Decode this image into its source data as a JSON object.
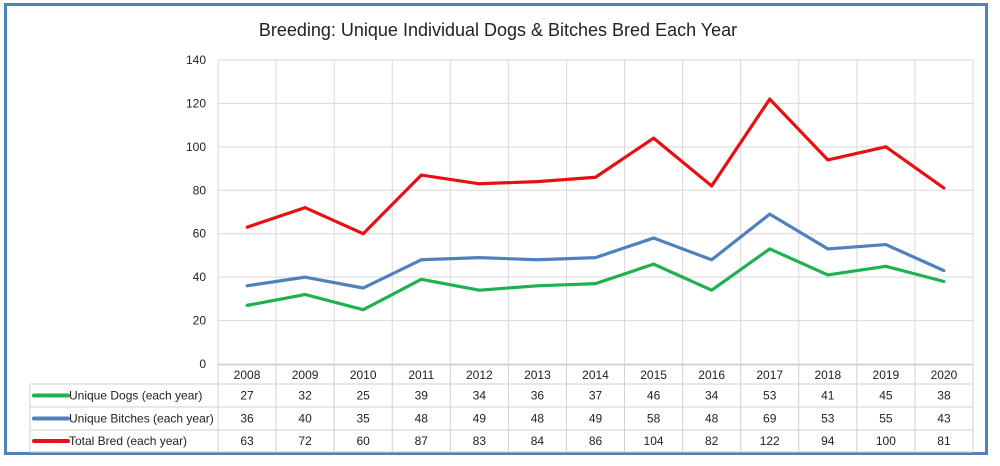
{
  "chart_data": {
    "type": "line",
    "title": "Breeding: Unique Individual Dogs & Bitches Bred Each Year",
    "categories": [
      "2008",
      "2009",
      "2010",
      "2011",
      "2012",
      "2013",
      "2014",
      "2015",
      "2016",
      "2017",
      "2018",
      "2019",
      "2020"
    ],
    "ylim": [
      0,
      140
    ],
    "yticks": [
      0,
      20,
      40,
      60,
      80,
      100,
      120,
      140
    ],
    "grid": true,
    "legend": "data-table-bottom",
    "series": [
      {
        "name": "Unique Dogs (each year)",
        "color": "#1fb050",
        "values": [
          27,
          32,
          25,
          39,
          34,
          36,
          37,
          46,
          34,
          53,
          41,
          45,
          38
        ]
      },
      {
        "name": "Unique Bitches (each year)",
        "color": "#4f81bd",
        "values": [
          36,
          40,
          35,
          48,
          49,
          48,
          49,
          58,
          48,
          69,
          53,
          55,
          43
        ]
      },
      {
        "name": "Total Bred (each year)",
        "color": "#e81010",
        "values": [
          63,
          72,
          60,
          87,
          83,
          84,
          86,
          104,
          82,
          122,
          94,
          100,
          81
        ]
      }
    ]
  }
}
